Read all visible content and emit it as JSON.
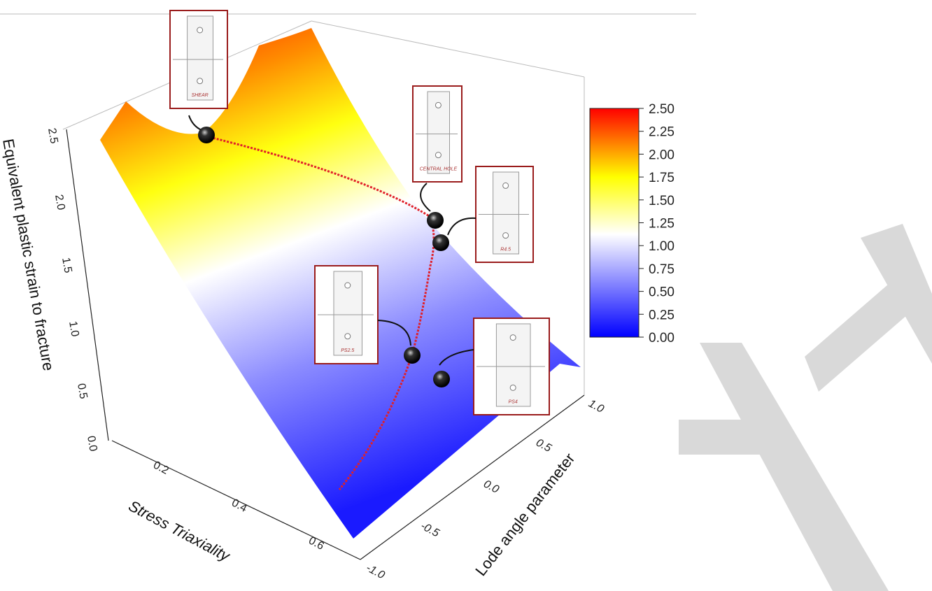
{
  "chart_data": {
    "type": "surface",
    "title": "",
    "xlabel": "Stress Triaxiality",
    "ylabel": "Lode angle parameter",
    "zlabel": "Equivalent plastic strain to fracture",
    "x_ticks": [
      "0.2",
      "0.4",
      "0.6"
    ],
    "y_ticks": [
      "-1.0",
      "-0.5",
      "0.0",
      "0.5",
      "1.0"
    ],
    "z_ticks": [
      "0.0",
      "0.5",
      "1.0",
      "1.5",
      "2.0",
      "2.5"
    ],
    "ylim": [
      -1.0,
      1.0
    ],
    "zlim": [
      0.0,
      2.5
    ],
    "colormap": [
      "#0000ff",
      "#ffffff",
      "#ffff00",
      "#ff0000"
    ],
    "colorbar": {
      "ticks": [
        "0.00",
        "0.25",
        "0.50",
        "0.75",
        "1.00",
        "1.25",
        "1.50",
        "1.75",
        "2.00",
        "2.25",
        "2.50"
      ],
      "range": [
        0.0,
        2.5
      ]
    },
    "fracture_locus_color": "#e0202a",
    "callouts": [
      {
        "label": "SHEAR"
      },
      {
        "label": "CENTRAL HOLE"
      },
      {
        "label": "R4.5"
      },
      {
        "label": "PS2.5"
      },
      {
        "label": "PS4"
      }
    ]
  }
}
